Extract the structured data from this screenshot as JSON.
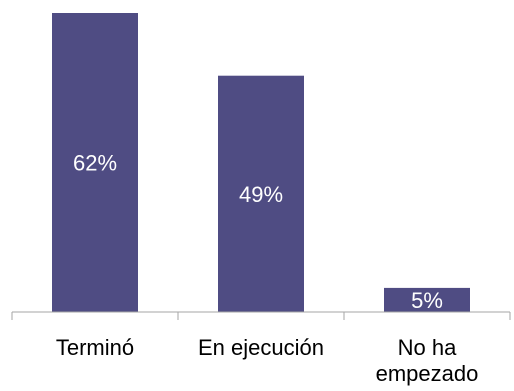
{
  "chart_data": {
    "type": "bar",
    "categories": [
      "Terminó",
      "En ejecución",
      "No ha empezado"
    ],
    "category_lines": [
      [
        "Terminó"
      ],
      [
        "En ejecución"
      ],
      [
        "No ha",
        "empezado"
      ]
    ],
    "values": [
      62,
      49,
      5
    ],
    "data_labels": [
      "62%",
      "49%",
      "5%"
    ],
    "title": "",
    "xlabel": "",
    "ylabel": "",
    "ylim": [
      0,
      62
    ],
    "grid": false,
    "legend": "none",
    "colors": {
      "bar": "#4F4C83",
      "label_text": "#FFFFFF",
      "axis": "#A6A6A6",
      "category_text": "#000000"
    }
  }
}
